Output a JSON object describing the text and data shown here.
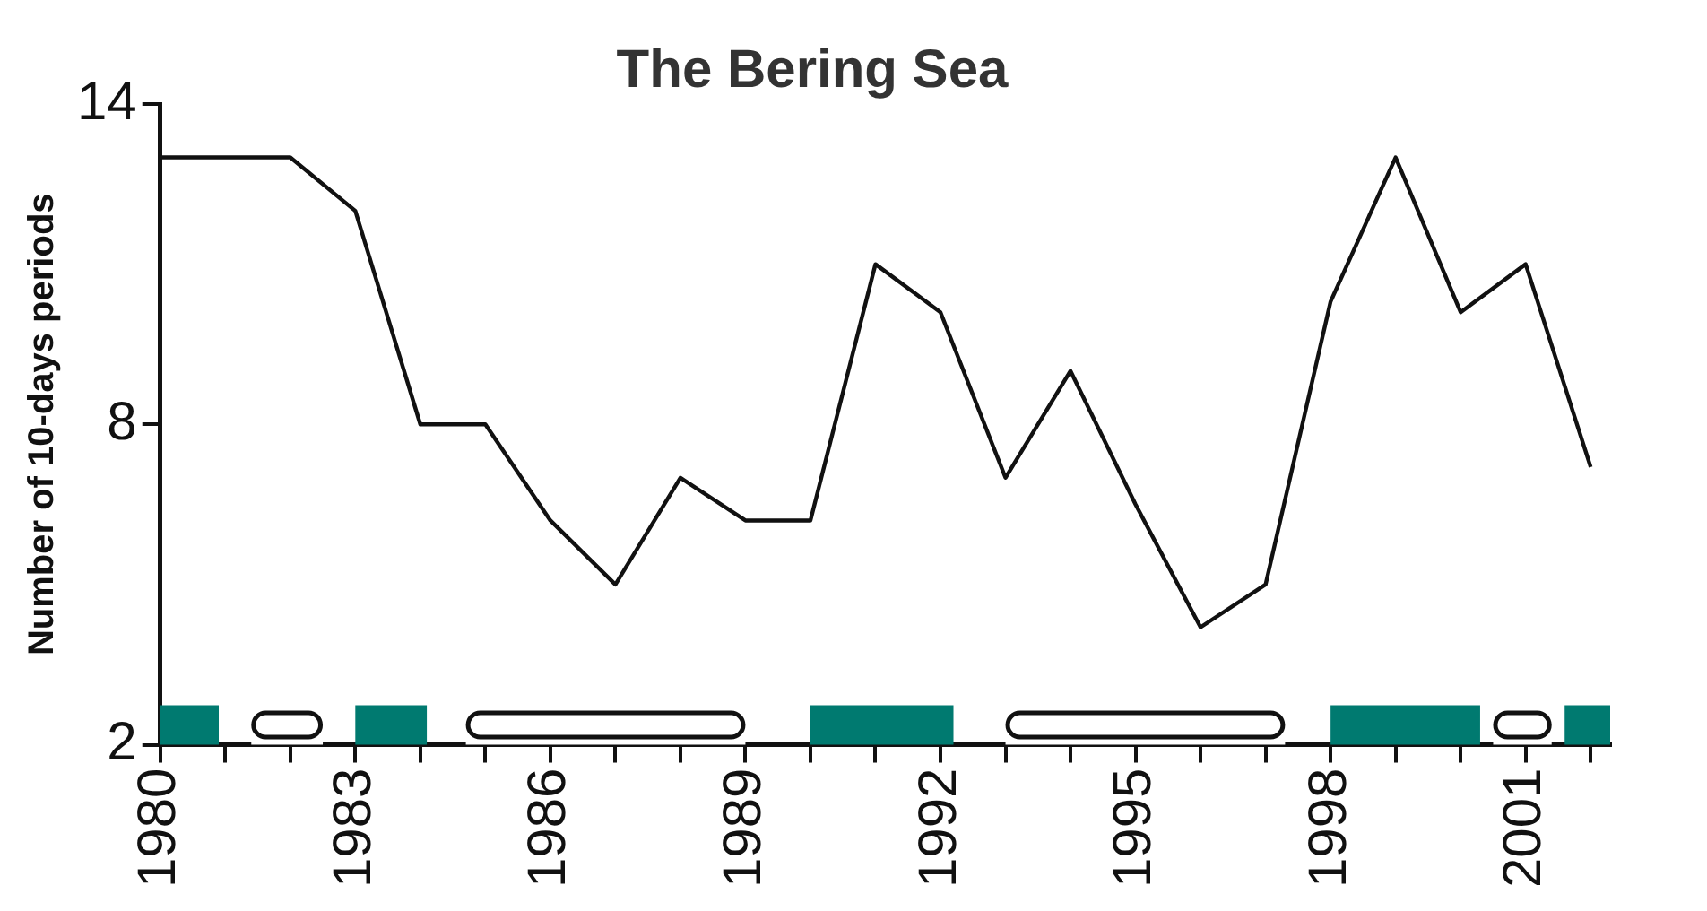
{
  "chart_data": {
    "type": "line",
    "title": "The Bering Sea",
    "ylabel": "Number of 10-days periods",
    "x": [
      1980,
      1982,
      1983,
      1984,
      1985,
      1986,
      1987,
      1988,
      1989,
      1990,
      1991,
      1992,
      1993,
      1994,
      1995,
      1996,
      1997,
      1998,
      1999,
      2000,
      2001,
      2002
    ],
    "series": [
      {
        "color": "#111111",
        "values": [
          13,
          13,
          12,
          8,
          8,
          6.2,
          5,
          7,
          6.2,
          6.2,
          11,
          10.1,
          7,
          9,
          6.5,
          4.2,
          5,
          10.3,
          13,
          10.1,
          11,
          7.2
        ]
      }
    ],
    "xlim": [
      1980,
      2002.3
    ],
    "ylim": [
      2,
      14
    ],
    "yticks": [
      2,
      8,
      14
    ],
    "xticks": [
      1980,
      {
        "value": 1981,
        "label": null
      },
      {
        "value": 1982,
        "label": null
      },
      1983,
      {
        "value": 1984,
        "label": null
      },
      {
        "value": 1985,
        "label": null
      },
      1986,
      {
        "value": 1987,
        "label": null
      },
      {
        "value": 1988,
        "label": null
      },
      1989,
      {
        "value": 1990,
        "label": null
      },
      {
        "value": 1991,
        "label": null
      },
      1992,
      {
        "value": 1993,
        "label": null
      },
      {
        "value": 1994,
        "label": null
      },
      1995,
      {
        "value": 1996,
        "label": null
      },
      {
        "value": 1997,
        "label": null
      },
      1998,
      {
        "value": 1999,
        "label": null
      },
      {
        "value": 2000,
        "label": null
      },
      2001,
      {
        "value": 2002,
        "label": null
      }
    ],
    "bands": [
      {
        "axis": "x",
        "from": 1980,
        "to": 1980.9,
        "color": "#007a70"
      },
      {
        "axis": "x",
        "from": 1981.4,
        "to": 1982.5,
        "color": "#ffffff"
      },
      {
        "axis": "x",
        "from": 1983,
        "to": 1984.1,
        "color": "#007a70"
      },
      {
        "axis": "x",
        "from": 1984.7,
        "to": 1989,
        "color": "#ffffff"
      },
      {
        "axis": "x",
        "from": 1990,
        "to": 1992.2,
        "color": "#007a70"
      },
      {
        "axis": "x",
        "from": 1993,
        "to": 1997.3,
        "color": "#ffffff"
      },
      {
        "axis": "x",
        "from": 1998,
        "to": 2000.3,
        "color": "#007a70"
      },
      {
        "axis": "x",
        "from": 2000.5,
        "to": 2001.4,
        "color": "#ffffff"
      },
      {
        "axis": "x",
        "from": 2001.6,
        "to": 2002.3,
        "color": "#007a70"
      }
    ],
    "grid": false,
    "legend": false,
    "marker": "none",
    "line_style": "solid"
  }
}
